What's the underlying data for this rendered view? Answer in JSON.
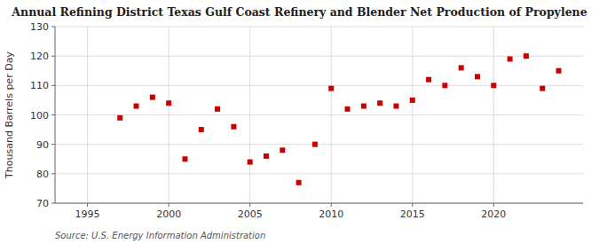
{
  "chart_data": {
    "type": "scatter",
    "title": "Annual Refining District Texas Gulf Coast Refinery and Blender Net Production of Propylene",
    "ylabel": "Thousand Barrels per Day",
    "annotation": "Source: U.S. Energy Information Administration",
    "x": [
      1997,
      1998,
      1999,
      2000,
      2001,
      2002,
      2003,
      2004,
      2005,
      2006,
      2007,
      2008,
      2009,
      2010,
      2011,
      2012,
      2013,
      2014,
      2015,
      2016,
      2017,
      2018,
      2019,
      2020,
      2021,
      2022,
      2023,
      2024
    ],
    "values": [
      99,
      103,
      106,
      104,
      85,
      95,
      102,
      96,
      84,
      86,
      88,
      77,
      90,
      109,
      102,
      103,
      104,
      103,
      105,
      112,
      110,
      116,
      113,
      110,
      119,
      120,
      109,
      115
    ],
    "color": "#cc0000",
    "marker": "square",
    "xlim": [
      1993.0,
      2025.5
    ],
    "ylim": [
      70,
      130
    ],
    "xticks": [
      1995,
      2000,
      2005,
      2010,
      2015,
      2020
    ],
    "yticks": [
      70,
      80,
      90,
      100,
      110,
      120,
      130
    ],
    "grid": true
  }
}
